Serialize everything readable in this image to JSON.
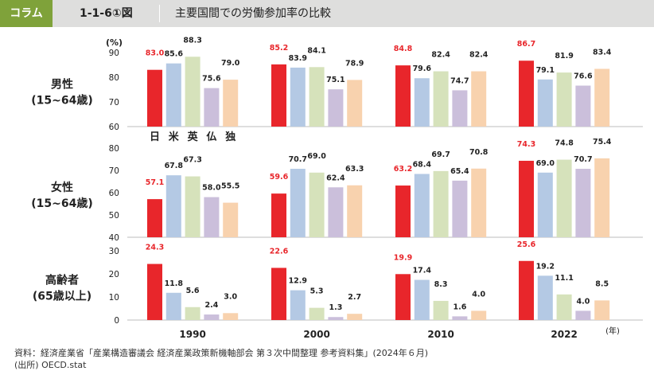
{
  "header": {
    "tag": "コラム",
    "figure_no": "1-1-6①図",
    "title": "主要国間での労働参加率の比較"
  },
  "colors": {
    "header_bg": "#dededd",
    "tag_bg": "#7fa23a",
    "japan": "#e8262b",
    "us": "#b4c9e4",
    "uk": "#d6e2bb",
    "france": "#cbbfdb",
    "germany": "#f8d2ae",
    "japan_label": "#e8262b"
  },
  "chart_data": {
    "type": "bar",
    "unit_label": "(%)",
    "x_unit": "(年)",
    "categories": [
      "1990",
      "2000",
      "2010",
      "2022"
    ],
    "country_labels": [
      "日",
      "米",
      "英",
      "仏",
      "独"
    ],
    "panels": [
      {
        "label_line1": "男性",
        "label_line2": "(15~64歳)",
        "ylim": [
          60,
          90
        ],
        "yticks": [
          60,
          70,
          80,
          90
        ],
        "series": [
          {
            "values": [
              83.0,
              85.2,
              84.8,
              86.7
            ]
          },
          {
            "values": [
              85.6,
              83.9,
              79.6,
              79.1
            ]
          },
          {
            "values": [
              88.3,
              84.1,
              82.4,
              81.9
            ]
          },
          {
            "values": [
              75.6,
              75.1,
              74.7,
              76.6
            ]
          },
          {
            "values": [
              79.0,
              78.9,
              82.4,
              83.4
            ]
          }
        ]
      },
      {
        "label_line1": "女性",
        "label_line2": "(15~64歳)",
        "ylim": [
          40,
          80
        ],
        "yticks": [
          40,
          50,
          60,
          70,
          80
        ],
        "series": [
          {
            "values": [
              57.1,
              59.6,
              63.2,
              74.3
            ]
          },
          {
            "values": [
              67.8,
              70.7,
              68.4,
              69.0
            ]
          },
          {
            "values": [
              67.3,
              69.0,
              69.7,
              74.8
            ]
          },
          {
            "values": [
              58.0,
              62.4,
              65.4,
              70.7
            ]
          },
          {
            "values": [
              55.5,
              63.3,
              70.8,
              75.4
            ]
          }
        ]
      },
      {
        "label_line1": "高齢者",
        "label_line2": "(65歳以上)",
        "ylim": [
          0,
          30
        ],
        "yticks": [
          0,
          10,
          20,
          30
        ],
        "series": [
          {
            "values": [
              24.3,
              22.6,
              19.9,
              25.6
            ]
          },
          {
            "values": [
              11.8,
              12.9,
              17.4,
              19.2
            ]
          },
          {
            "values": [
              5.6,
              5.3,
              8.3,
              11.1
            ]
          },
          {
            "values": [
              2.4,
              1.3,
              1.6,
              4.0
            ]
          },
          {
            "values": [
              3.0,
              2.7,
              4.0,
              8.5
            ]
          }
        ]
      }
    ]
  },
  "source": {
    "line1": "資料：経済産業省「産業構造審議会 経済産業政策新機軸部会 第３次中間整理 参考資料集」(2024年６月)",
    "line2": "(出所) OECD.stat"
  }
}
